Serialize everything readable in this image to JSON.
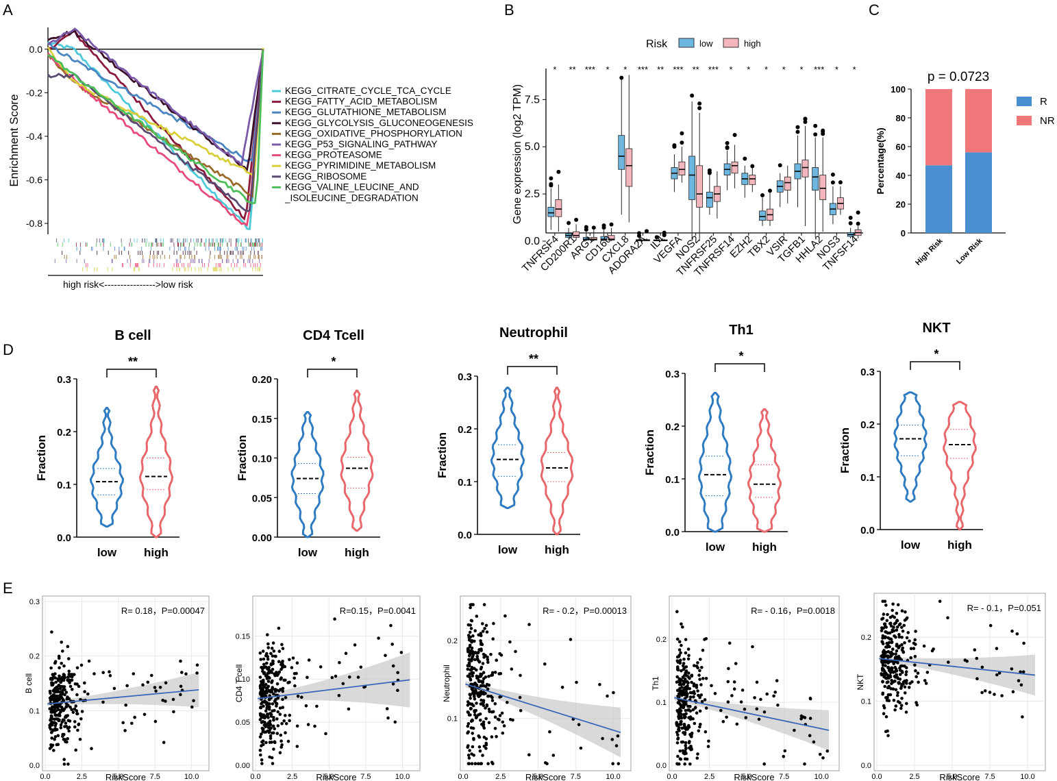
{
  "panels": {
    "A": "A",
    "B": "B",
    "C": "C",
    "D": "D",
    "E": "E"
  },
  "colors": {
    "low": "#2f7bc1",
    "high": "#e8676b",
    "boxLow": "#6db6df",
    "boxHigh": "#f4b6bd",
    "R": "#4a90d0",
    "NR": "#f0787a",
    "line": "#3a66b8",
    "band": "#cccccc"
  },
  "chart_data": [
    {
      "id": "A",
      "type": "line",
      "title": "",
      "ylabel": "Enrichment Score",
      "xlabel": "high risk<---------------->low risk",
      "ylim": [
        -0.85,
        0.1
      ],
      "yticks": [
        0.0,
        -0.2,
        -0.4,
        -0.6,
        -0.8
      ],
      "ytick_labels": [
        "0.0",
        "-0.2",
        "-0.4",
        "-0.6",
        "-0.8"
      ],
      "series": [
        {
          "name": "KEGG_CITRATE_CYCLE_TCA_CYCLE",
          "color": "#4dc9d9",
          "start": 0.03,
          "mid": 0.0,
          "min": -0.83,
          "minPos": 0.94,
          "end": 0.0
        },
        {
          "name": "KEGG_FATTY_ACID_METABOLISM",
          "color": "#8b1a3a",
          "start": 0.0,
          "mid": 0.08,
          "min": -0.78,
          "minPos": 0.92,
          "end": 0.0
        },
        {
          "name": "KEGG_GLUTATHIONE_METABOLISM",
          "color": "#4a86c2",
          "start": 0.02,
          "mid": -0.05,
          "min": -0.52,
          "minPos": 0.95,
          "end": 0.0
        },
        {
          "name": "KEGG_GLYCOLYSIS_GLUCONEOGENESIS",
          "color": "#3b0f2a",
          "start": 0.05,
          "mid": 0.08,
          "min": -0.56,
          "minPos": 0.93,
          "end": 0.0
        },
        {
          "name": "KEGG_OXIDATIVE_PHOSPHORYLATION",
          "color": "#9a6a2a",
          "start": -0.02,
          "mid": -0.15,
          "min": -0.67,
          "minPos": 0.95,
          "end": 0.0
        },
        {
          "name": "KEGG_P53_SIGNALING_PATHWAY",
          "color": "#7a5aa8",
          "start": 0.02,
          "mid": 0.09,
          "min": -0.53,
          "minPos": 0.9,
          "end": 0.0
        },
        {
          "name": "KEGG_PROTEASOME",
          "color": "#e84a7a",
          "start": -0.02,
          "mid": -0.14,
          "min": -0.82,
          "minPos": 0.93,
          "end": 0.0
        },
        {
          "name": "KEGG_PYRIMIDINE_METABOLISM",
          "color": "#d9cf3a",
          "start": 0.0,
          "mid": -0.15,
          "min": -0.58,
          "minPos": 0.96,
          "end": 0.0
        },
        {
          "name": "KEGG_RIBOSOME",
          "color": "#5a4a72",
          "start": -0.12,
          "mid": -0.12,
          "min": -0.75,
          "minPos": 0.94,
          "end": 0.0
        },
        {
          "name": "KEGG_VALINE_LEUCINE_AND\n_ISOLEUCINE_DEGRADATION",
          "color": "#4cbf5a",
          "start": -0.02,
          "mid": -0.12,
          "min": -0.72,
          "minPos": 0.97,
          "end": 0.0
        }
      ]
    },
    {
      "id": "B",
      "type": "box",
      "legend_title": "Risk",
      "legend": [
        "low",
        "high"
      ],
      "ylabel": "Gene expression (log2 TPM)",
      "ylim": [
        0,
        9
      ],
      "yticks": [
        0.0,
        2.5,
        5.0,
        7.5
      ],
      "ytick_labels": [
        "0.0",
        "2.5",
        "5.0",
        "7.5"
      ],
      "categories": [
        "TNFRSF4",
        "CD200R1",
        "ARG1",
        "CD160",
        "CXCL8",
        "ADORA2A",
        "IL4",
        "VEGFA",
        "NOS2",
        "TNFRSF25",
        "TNFRSF14",
        "EZH2",
        "TBX2",
        "VSIR",
        "TGFB1",
        "HHLA2",
        "NOS3",
        "TNFSF14"
      ],
      "significance": [
        "*",
        "**",
        "***",
        "*",
        "*",
        "***",
        "**",
        "***",
        "**",
        "***",
        "*",
        "*",
        "*",
        "*",
        "*",
        "***",
        "*",
        "*"
      ],
      "low": [
        [
          0.6,
          1.3,
          1.5,
          1.8,
          2.8
        ],
        [
          0.05,
          0.2,
          0.3,
          0.4,
          0.7
        ],
        [
          0.0,
          0.05,
          0.1,
          0.2,
          0.5
        ],
        [
          0.0,
          0.05,
          0.1,
          0.25,
          0.6
        ],
        [
          1.4,
          3.8,
          4.5,
          5.6,
          8.6
        ],
        [
          0.0,
          0.02,
          0.05,
          0.08,
          0.15
        ],
        [
          0.0,
          0.02,
          0.04,
          0.07,
          0.12
        ],
        [
          2.6,
          3.3,
          3.6,
          3.9,
          4.6
        ],
        [
          0.0,
          2.2,
          3.5,
          4.5,
          7.4
        ],
        [
          1.4,
          1.8,
          2.3,
          2.6,
          3.5
        ],
        [
          2.7,
          3.5,
          3.8,
          4.1,
          4.8
        ],
        [
          2.3,
          3.0,
          3.3,
          3.6,
          4.0
        ],
        [
          0.8,
          1.1,
          1.3,
          1.6,
          2.3
        ],
        [
          1.8,
          2.6,
          2.9,
          3.2,
          3.6
        ],
        [
          1.8,
          3.3,
          3.7,
          4.1,
          5.6
        ],
        [
          0.2,
          2.7,
          3.4,
          3.9,
          5.5
        ],
        [
          0.9,
          1.4,
          1.7,
          2.0,
          2.9
        ],
        [
          0.15,
          0.25,
          0.35,
          0.45,
          0.7
        ]
      ],
      "high": [
        [
          0.5,
          1.3,
          1.7,
          2.2,
          3.0
        ],
        [
          0.05,
          0.2,
          0.3,
          0.5,
          0.9
        ],
        [
          0.0,
          0.05,
          0.1,
          0.2,
          0.6
        ],
        [
          0.0,
          0.05,
          0.1,
          0.3,
          0.7
        ],
        [
          1.0,
          2.9,
          4.0,
          4.9,
          8.8
        ],
        [
          0.0,
          0.02,
          0.05,
          0.08,
          0.15
        ],
        [
          0.0,
          0.02,
          0.04,
          0.07,
          0.12
        ],
        [
          3.1,
          3.5,
          3.8,
          4.2,
          5.0
        ],
        [
          0.0,
          1.8,
          2.5,
          4.0,
          6.8
        ],
        [
          1.2,
          2.1,
          2.5,
          2.9,
          3.7
        ],
        [
          2.8,
          3.6,
          4.0,
          4.2,
          5.1
        ],
        [
          2.6,
          3.0,
          3.3,
          3.5,
          3.9
        ],
        [
          0.8,
          1.1,
          1.4,
          1.7,
          2.6
        ],
        [
          2.0,
          2.7,
          3.1,
          3.4,
          4.0
        ],
        [
          0.8,
          3.4,
          3.9,
          4.3,
          6.1
        ],
        [
          0.5,
          2.2,
          2.8,
          3.5,
          5.5
        ],
        [
          1.4,
          1.7,
          2.0,
          2.3,
          2.9
        ],
        [
          0.15,
          0.3,
          0.45,
          0.6,
          0.8
        ]
      ]
    },
    {
      "id": "C",
      "type": "bar",
      "title": "p = 0.0723",
      "ylabel": "Percentage(%)",
      "ylim": [
        0,
        100
      ],
      "yticks": [
        0,
        20,
        40,
        60,
        80,
        100
      ],
      "ytick_labels": [
        "0",
        "20",
        "40",
        "60",
        "80",
        "100"
      ],
      "categories": [
        "High Risk",
        "Low Risk"
      ],
      "series": [
        {
          "name": "R",
          "values": [
            47,
            56
          ]
        },
        {
          "name": "NR",
          "values": [
            53,
            44
          ]
        }
      ]
    },
    {
      "id": "D",
      "type": "violin",
      "ylabel": "Fraction",
      "categories": [
        "low",
        "high"
      ],
      "panels": [
        {
          "title": "B cell",
          "sig": "**",
          "ylim": [
            0,
            0.3
          ],
          "yticks": [
            0.0,
            0.1,
            0.2,
            0.3
          ],
          "ytick_labels": [
            "0.0",
            "0.1",
            "0.2",
            "0.3"
          ],
          "low": {
            "min": 0.02,
            "q1": 0.08,
            "median": 0.105,
            "q3": 0.13,
            "max": 0.245
          },
          "high": {
            "min": 0.0,
            "q1": 0.09,
            "median": 0.115,
            "q3": 0.15,
            "max": 0.285
          }
        },
        {
          "title": "CD4 Tcell",
          "sig": "*",
          "ylim": [
            0,
            0.2
          ],
          "yticks": [
            0.0,
            0.05,
            0.1,
            0.15,
            0.2
          ],
          "ytick_labels": [
            "0.00",
            "0.05",
            "0.10",
            "0.15",
            "0.20"
          ],
          "low": {
            "min": 0.0,
            "q1": 0.055,
            "median": 0.074,
            "q3": 0.093,
            "max": 0.158
          },
          "high": {
            "min": 0.008,
            "q1": 0.062,
            "median": 0.087,
            "q3": 0.101,
            "max": 0.185
          }
        },
        {
          "title": "Neutrophil",
          "sig": "**",
          "ylim": [
            0,
            0.3
          ],
          "yticks": [
            0.0,
            0.1,
            0.2,
            0.3
          ],
          "ytick_labels": [
            "0.0",
            "0.1",
            "0.2",
            "0.3"
          ],
          "low": {
            "min": 0.05,
            "q1": 0.11,
            "median": 0.142,
            "q3": 0.17,
            "max": 0.278
          },
          "high": {
            "min": 0.0,
            "q1": 0.1,
            "median": 0.126,
            "q3": 0.155,
            "max": 0.278
          }
        },
        {
          "title": "Th1",
          "sig": "*",
          "ylim": [
            0,
            0.3
          ],
          "yticks": [
            0.0,
            0.1,
            0.2,
            0.3
          ],
          "ytick_labels": [
            "0.0",
            "0.1",
            "0.2",
            "0.3"
          ],
          "low": {
            "min": 0.0,
            "q1": 0.068,
            "median": 0.108,
            "q3": 0.143,
            "max": 0.263
          },
          "high": {
            "min": 0.0,
            "q1": 0.065,
            "median": 0.09,
            "q3": 0.127,
            "max": 0.232
          }
        },
        {
          "title": "NKT",
          "sig": "*",
          "ylim": [
            0,
            0.3
          ],
          "yticks": [
            0.0,
            0.1,
            0.2,
            0.3
          ],
          "ytick_labels": [
            "0.0",
            "0.1",
            "0.2",
            "0.3"
          ],
          "low": {
            "min": 0.053,
            "q1": 0.14,
            "median": 0.172,
            "q3": 0.198,
            "max": 0.26
          },
          "high": {
            "min": 0.0,
            "q1": 0.135,
            "median": 0.161,
            "q3": 0.19,
            "max": 0.242
          }
        }
      ]
    },
    {
      "id": "E",
      "type": "scatter",
      "xlabel": "RiskScore",
      "xlim": [
        0,
        11
      ],
      "xticks": [
        0.0,
        2.5,
        5.0,
        7.5,
        10.0
      ],
      "xtick_labels": [
        "0.0",
        "2.5",
        "5.0",
        "7.5",
        "10.0"
      ],
      "panels": [
        {
          "ylabel": "B cell",
          "annotation": "R= 0.18，P=0.00047",
          "ylim": [
            0,
            0.3
          ],
          "yticks": [
            0.0,
            0.1,
            0.2,
            0.3
          ],
          "ytick_labels": [
            "0.0",
            "0.1",
            "0.2",
            "0.3"
          ],
          "intercept": 0.112,
          "slope": 0.0025,
          "mean": 0.115,
          "sd": 0.04
        },
        {
          "ylabel": "CD4 T cell",
          "annotation": "R=0.15，P=0.0041",
          "ylim": [
            0,
            0.19
          ],
          "yticks": [
            0.0,
            0.05,
            0.1,
            0.15
          ],
          "ytick_labels": [
            "0.00",
            "0.05",
            "0.10",
            "0.15"
          ],
          "intercept": 0.077,
          "slope": 0.0021,
          "mean": 0.078,
          "sd": 0.033
        },
        {
          "ylabel": "Neutrophil",
          "annotation": "R= - 0.2，P=0.00013",
          "ylim": [
            0.04,
            0.25
          ],
          "yticks": [
            0.1,
            0.2
          ],
          "ytick_labels": [
            "0.1",
            "0.2"
          ],
          "intercept": 0.145,
          "slope": -0.006,
          "mean": 0.14,
          "sd": 0.045
        },
        {
          "ylabel": "Th1",
          "annotation": "R= - 0.16，P=0.0018",
          "ylim": [
            0,
            0.26
          ],
          "yticks": [
            0.0,
            0.1,
            0.2
          ],
          "ytick_labels": [
            "0.0",
            "0.1",
            "0.2"
          ],
          "intercept": 0.108,
          "slope": -0.005,
          "mean": 0.105,
          "sd": 0.05
        },
        {
          "ylabel": "NKT",
          "annotation": "R= - 0.1，P=0.051",
          "ylim": [
            0,
            0.26
          ],
          "yticks": [
            0.0,
            0.1,
            0.2
          ],
          "ytick_labels": [
            "0.0",
            "0.1",
            "0.2"
          ],
          "intercept": 0.167,
          "slope": -0.0025,
          "mean": 0.165,
          "sd": 0.04
        }
      ]
    }
  ]
}
